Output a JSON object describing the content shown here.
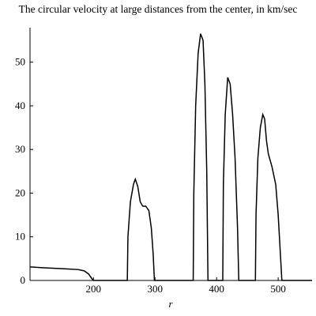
{
  "chart_data": {
    "type": "line",
    "title": "The circular velocity at large distances from the  center, in km/sec",
    "x_label": "r",
    "x": [
      97,
      120,
      150,
      175,
      185,
      192,
      197,
      200,
      255,
      256,
      260,
      265,
      268,
      272,
      276,
      280,
      285,
      290,
      294,
      297,
      299,
      362,
      363,
      366,
      370,
      374,
      378,
      381,
      384,
      386,
      410,
      411,
      414,
      418,
      422,
      426,
      430,
      434,
      436,
      463,
      464,
      467,
      471,
      475,
      478,
      481,
      484,
      490,
      496,
      500,
      504,
      506,
      555
    ],
    "series": [
      {
        "color": "#000000",
        "values": [
          3.1,
          2.9,
          2.7,
          2.5,
          2.2,
          1.5,
          0.5,
          0,
          0,
          10,
          18,
          22,
          23.2,
          21.5,
          18,
          17,
          17,
          16,
          12,
          6,
          0,
          0,
          20,
          40,
          52,
          56.5,
          55,
          45,
          25,
          0,
          0,
          22,
          38,
          46.5,
          45,
          38,
          28,
          12,
          0,
          0,
          15,
          28,
          35,
          38,
          37,
          32,
          29,
          26,
          22,
          15,
          5,
          0,
          0
        ]
      }
    ],
    "xlim": [
      97,
      555
    ],
    "ylim": [
      0,
      57
    ],
    "xticks": [
      200,
      300,
      400,
      500
    ],
    "yticks": [
      0,
      10,
      20,
      30,
      40,
      50
    ]
  }
}
